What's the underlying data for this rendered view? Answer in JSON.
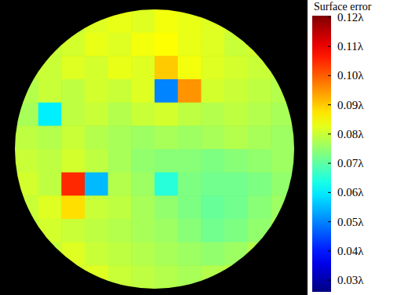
{
  "chart_data": {
    "type": "heatmap",
    "tick_labels": false,
    "cells": [
      [
        null,
        null,
        0.08,
        0.082,
        0.083,
        0.082,
        0.084,
        0.083,
        0.082,
        0.081,
        null,
        null
      ],
      [
        null,
        0.08,
        0.081,
        0.083,
        0.082,
        0.084,
        0.085,
        0.083,
        0.082,
        0.08,
        0.081,
        null
      ],
      [
        0.079,
        0.08,
        0.082,
        0.081,
        0.083,
        0.082,
        0.09,
        0.084,
        0.082,
        0.081,
        0.08,
        0.079
      ],
      [
        0.078,
        0.08,
        0.079,
        0.081,
        0.08,
        0.082,
        0.05,
        0.095,
        0.081,
        0.08,
        0.079,
        0.078
      ],
      [
        0.077,
        0.06,
        0.079,
        0.08,
        0.078,
        0.08,
        0.081,
        0.079,
        0.078,
        0.079,
        0.078,
        0.077
      ],
      [
        0.079,
        0.078,
        0.08,
        0.078,
        0.077,
        0.076,
        0.077,
        0.076,
        0.077,
        0.078,
        0.077,
        0.076
      ],
      [
        0.08,
        0.079,
        0.081,
        0.079,
        0.077,
        0.075,
        0.074,
        0.074,
        0.073,
        0.074,
        0.075,
        0.076
      ],
      [
        0.081,
        0.079,
        0.105,
        0.055,
        0.078,
        0.076,
        0.065,
        0.073,
        0.072,
        0.072,
        0.073,
        0.075
      ],
      [
        0.08,
        0.082,
        0.088,
        0.08,
        0.079,
        0.077,
        0.075,
        0.073,
        0.071,
        0.072,
        0.074,
        0.076
      ],
      [
        0.079,
        0.081,
        0.08,
        0.079,
        0.078,
        0.077,
        0.076,
        0.074,
        0.072,
        0.073,
        0.075,
        0.077
      ],
      [
        null,
        0.08,
        0.082,
        0.08,
        0.079,
        0.078,
        0.077,
        0.076,
        0.075,
        0.076,
        0.078,
        null
      ],
      [
        null,
        null,
        0.081,
        0.082,
        0.08,
        0.079,
        0.078,
        0.077,
        0.078,
        0.079,
        null,
        null
      ]
    ],
    "colorbar": {
      "title": "Surface error",
      "range": [
        0.026,
        0.1205
      ],
      "ticks": [
        {
          "value": 0.12,
          "label": "0.12λ"
        },
        {
          "value": 0.11,
          "label": "0.11λ"
        },
        {
          "value": 0.1,
          "label": "0.10λ"
        },
        {
          "value": 0.09,
          "label": "0.09λ"
        },
        {
          "value": 0.08,
          "label": "0.08λ"
        },
        {
          "value": 0.07,
          "label": "0.07λ"
        },
        {
          "value": 0.06,
          "label": "0.06λ"
        },
        {
          "value": 0.05,
          "label": "0.05λ"
        },
        {
          "value": 0.04,
          "label": "0.04λ"
        },
        {
          "value": 0.03,
          "label": "0.03λ"
        }
      ]
    }
  }
}
